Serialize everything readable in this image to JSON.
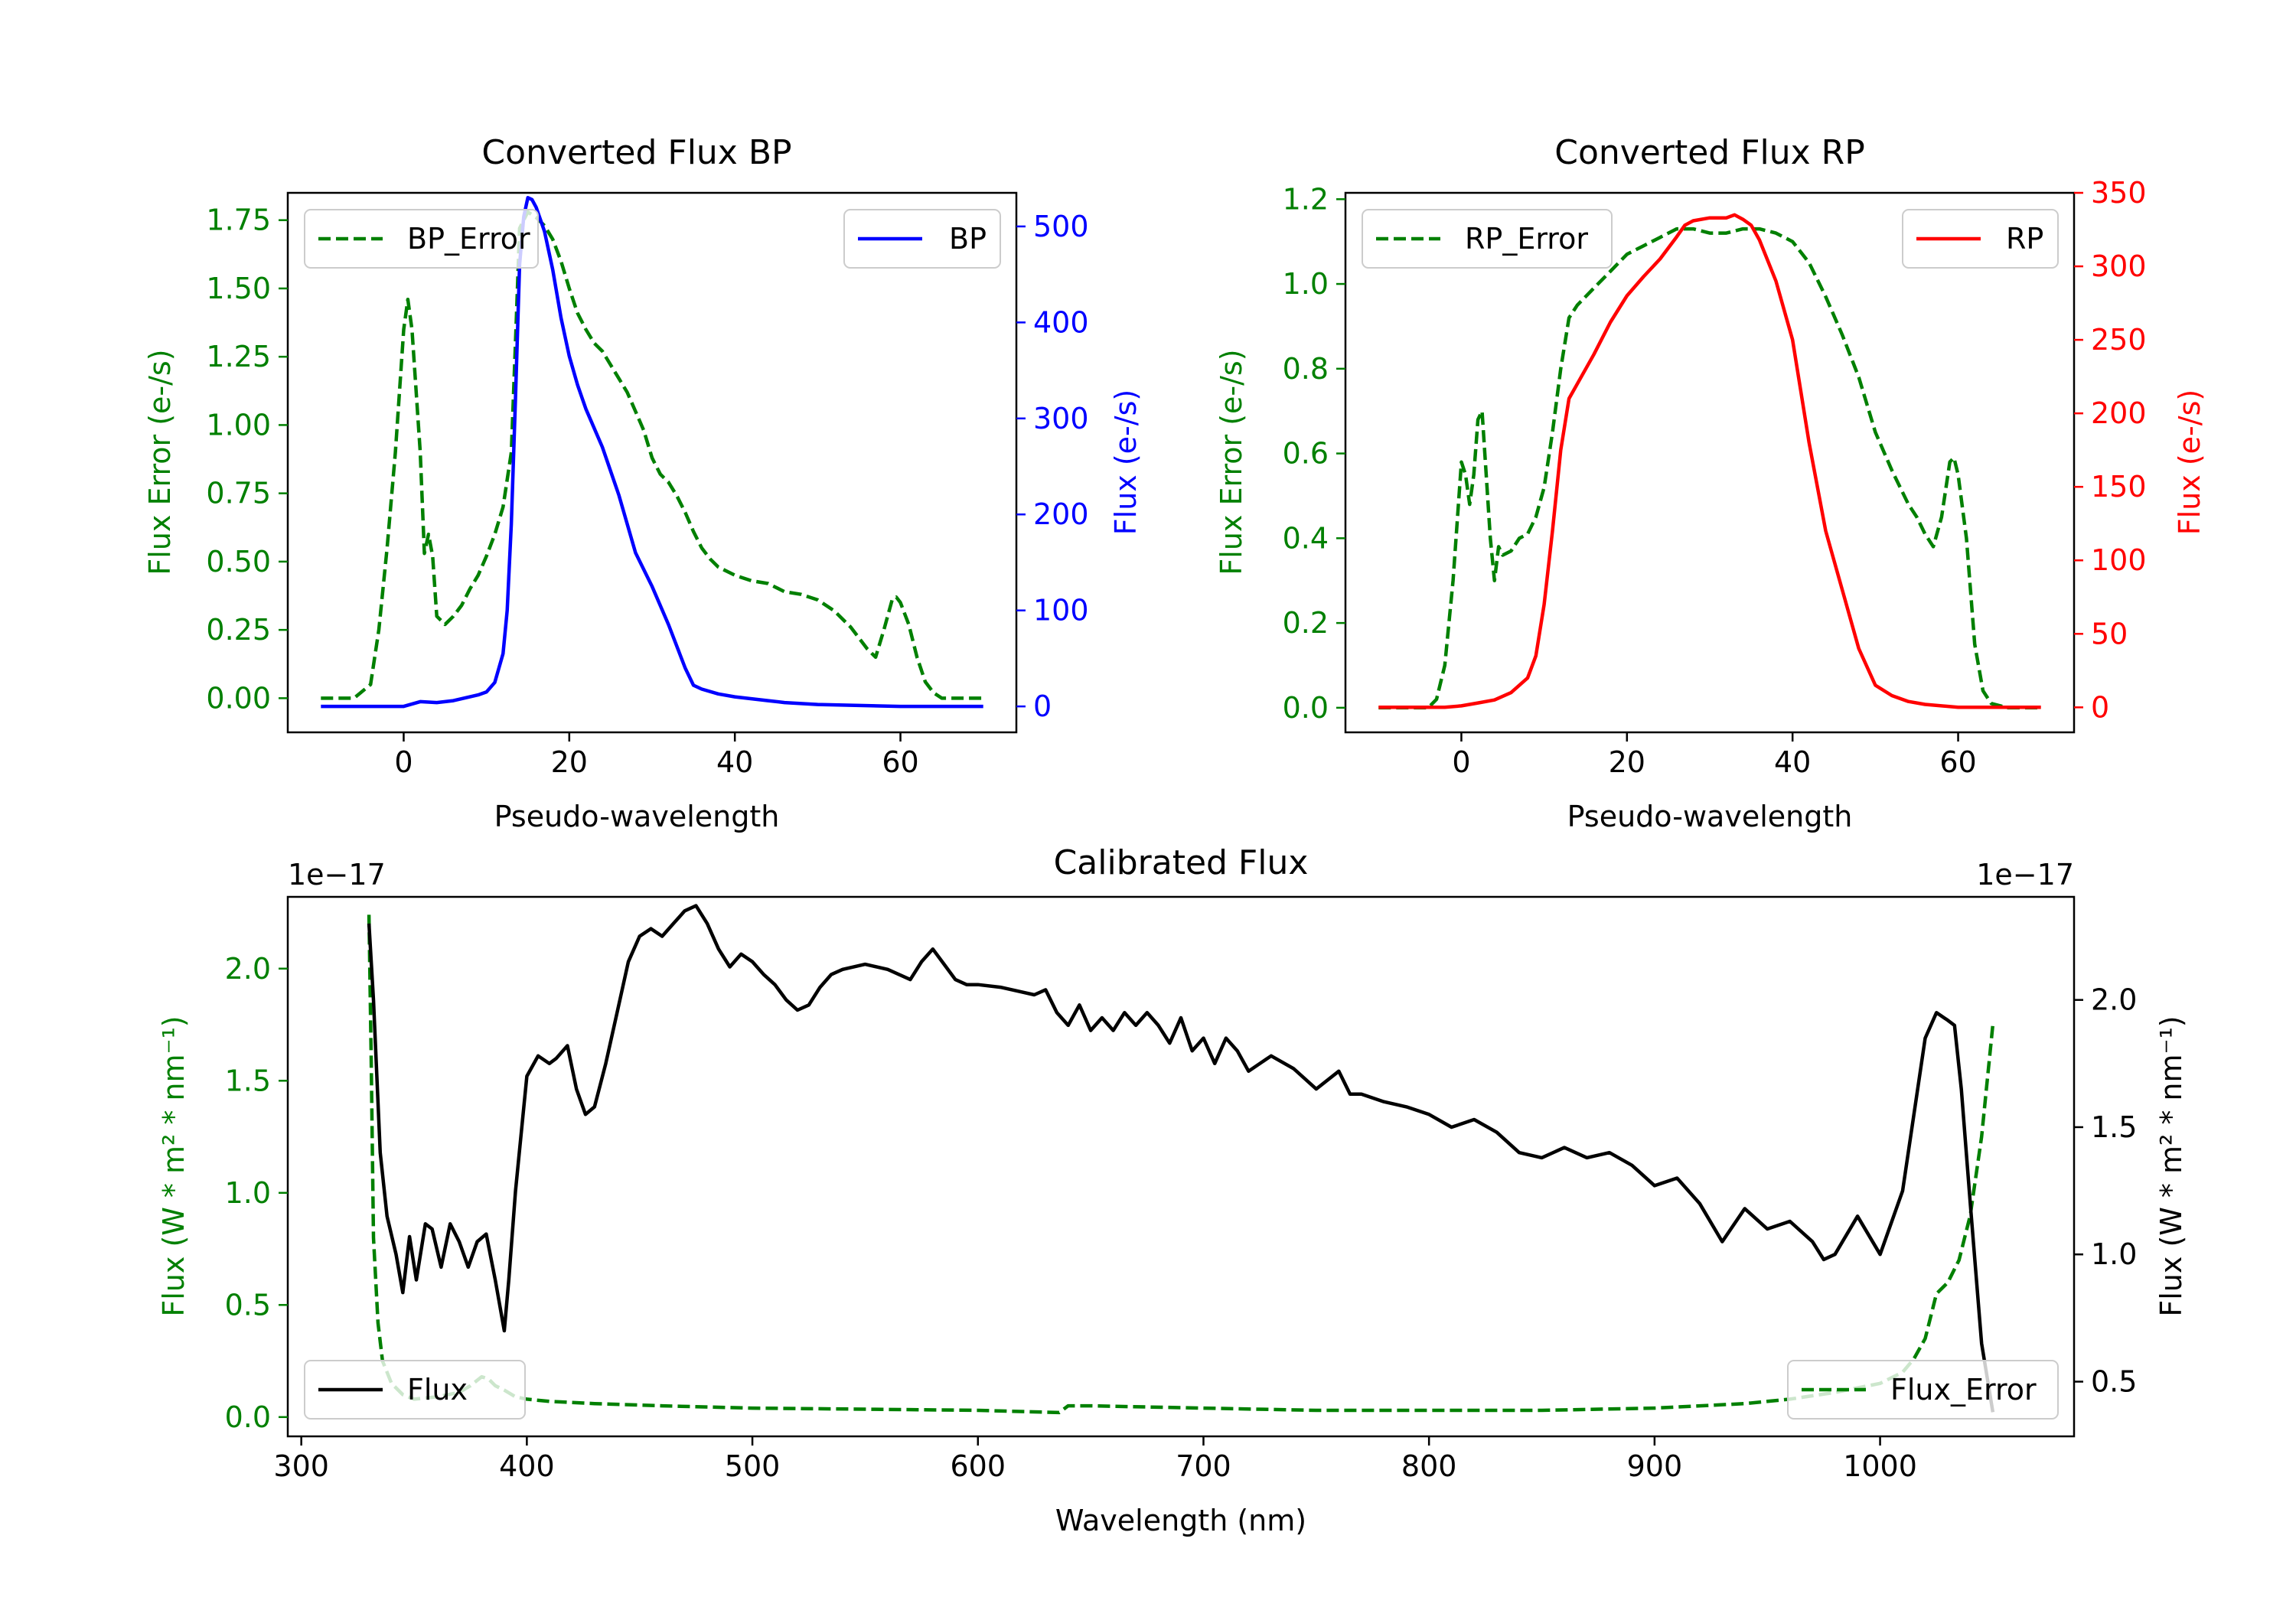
{
  "chart_data": [
    {
      "type": "line",
      "title": "Converted Flux BP",
      "xlabel": "Pseudo-wavelength",
      "ylabel_left": "Flux Error (e-/s)",
      "ylabel_right": "Flux (e-/s)",
      "xlim": [
        -14,
        74
      ],
      "ylim_left": [
        -0.125,
        1.85
      ],
      "ylim_right": [
        -27,
        535
      ],
      "x_ticks": [
        "0",
        "20",
        "40",
        "60"
      ],
      "y_ticks_left": [
        "0.00",
        "0.25",
        "0.50",
        "0.75",
        "1.00",
        "1.25",
        "1.50",
        "1.75"
      ],
      "y_ticks_right": [
        "0",
        "100",
        "200",
        "300",
        "400",
        "500"
      ],
      "colors": {
        "left_axis": "#008000",
        "right_axis": "#0000ff"
      },
      "series": [
        {
          "name": "BP_Error",
          "axis": "left",
          "style": "dashed",
          "color": "#008000",
          "x": [
            -10,
            -6,
            -4,
            -3,
            -2,
            -1,
            0,
            0.5,
            1,
            2,
            2.5,
            3,
            3.5,
            4,
            5,
            6,
            7,
            8,
            9,
            10,
            11,
            12,
            13,
            13.5,
            14,
            15,
            16,
            17,
            18,
            19,
            20,
            21,
            22,
            23,
            24,
            25,
            26,
            27,
            28,
            29,
            30,
            31,
            32,
            33,
            34,
            35,
            36,
            37,
            38,
            40,
            42,
            44,
            46,
            48,
            50,
            52,
            54,
            56,
            57,
            58,
            59,
            59.5,
            60,
            61,
            62,
            63,
            64,
            65,
            66,
            68,
            70
          ],
          "values": [
            0,
            0,
            0.05,
            0.25,
            0.55,
            0.9,
            1.35,
            1.46,
            1.35,
            0.9,
            0.53,
            0.6,
            0.52,
            0.3,
            0.27,
            0.3,
            0.34,
            0.4,
            0.45,
            0.52,
            0.6,
            0.7,
            0.9,
            1.3,
            1.72,
            1.78,
            1.76,
            1.73,
            1.68,
            1.6,
            1.5,
            1.41,
            1.35,
            1.3,
            1.27,
            1.22,
            1.17,
            1.12,
            1.05,
            0.98,
            0.88,
            0.82,
            0.79,
            0.74,
            0.68,
            0.61,
            0.55,
            0.51,
            0.48,
            0.45,
            0.43,
            0.42,
            0.39,
            0.38,
            0.36,
            0.32,
            0.26,
            0.18,
            0.15,
            0.25,
            0.36,
            0.37,
            0.35,
            0.27,
            0.15,
            0.06,
            0.02,
            0,
            0,
            0,
            0
          ]
        },
        {
          "name": "BP",
          "axis": "right",
          "style": "solid",
          "color": "#0000ff",
          "x": [
            -10,
            0,
            2,
            4,
            6,
            8,
            9,
            10,
            11,
            12,
            12.5,
            13,
            13.5,
            14,
            14.5,
            15,
            15.5,
            16,
            17,
            18,
            19,
            20,
            21,
            22,
            24,
            26,
            28,
            30,
            32,
            34,
            35,
            36,
            38,
            40,
            42,
            44,
            46,
            50,
            55,
            60,
            70
          ],
          "values": [
            0,
            0,
            5,
            4,
            6,
            10,
            12,
            15,
            25,
            55,
            100,
            190,
            320,
            460,
            510,
            530,
            528,
            520,
            495,
            455,
            405,
            365,
            335,
            310,
            270,
            220,
            160,
            125,
            85,
            40,
            22,
            18,
            13,
            10,
            8,
            6,
            4,
            2,
            1,
            0,
            0
          ]
        }
      ],
      "legend": [
        {
          "label": "BP_Error",
          "location": "upper-left"
        },
        {
          "label": "BP",
          "location": "upper-right"
        }
      ]
    },
    {
      "type": "line",
      "title": "Converted Flux RP",
      "xlabel": "Pseudo-wavelength",
      "ylabel_left": "Flux Error (e-/s)",
      "ylabel_right": "Flux (e-/s)",
      "xlim": [
        -14,
        74
      ],
      "ylim_left": [
        -0.058,
        1.215
      ],
      "ylim_right": [
        -17,
        350
      ],
      "x_ticks": [
        "0",
        "20",
        "40",
        "60"
      ],
      "y_ticks_left": [
        "0.0",
        "0.2",
        "0.4",
        "0.6",
        "0.8",
        "1.0",
        "1.2"
      ],
      "y_ticks_right": [
        "0",
        "50",
        "100",
        "150",
        "200",
        "250",
        "300",
        "350"
      ],
      "colors": {
        "left_axis": "#008000",
        "right_axis": "#ff0000"
      },
      "series": [
        {
          "name": "RP_Error",
          "axis": "left",
          "style": "dashed",
          "color": "#008000",
          "x": [
            -10,
            -4,
            -3,
            -2,
            -1,
            0,
            0.5,
            1,
            1.5,
            2,
            2.5,
            3,
            3.5,
            4,
            4.5,
            5,
            6,
            7,
            8,
            9,
            10,
            11,
            12,
            13,
            14,
            16,
            18,
            20,
            22,
            24,
            26,
            28,
            30,
            32,
            34,
            36,
            38,
            40,
            42,
            44,
            46,
            48,
            50,
            52,
            54,
            55,
            56,
            57,
            58,
            59,
            59.5,
            60,
            61,
            62,
            63,
            64,
            66,
            70
          ],
          "values": [
            0,
            0,
            0.02,
            0.1,
            0.3,
            0.58,
            0.55,
            0.48,
            0.55,
            0.68,
            0.7,
            0.55,
            0.4,
            0.3,
            0.38,
            0.36,
            0.37,
            0.4,
            0.41,
            0.45,
            0.52,
            0.65,
            0.8,
            0.92,
            0.95,
            0.99,
            1.03,
            1.07,
            1.09,
            1.11,
            1.13,
            1.13,
            1.12,
            1.12,
            1.13,
            1.13,
            1.12,
            1.1,
            1.05,
            0.97,
            0.88,
            0.78,
            0.65,
            0.56,
            0.48,
            0.45,
            0.41,
            0.38,
            0.45,
            0.58,
            0.59,
            0.55,
            0.4,
            0.15,
            0.04,
            0.01,
            0,
            0
          ]
        },
        {
          "name": "RP",
          "axis": "right",
          "style": "solid",
          "color": "#ff0000",
          "x": [
            -10,
            -2,
            0,
            2,
            4,
            6,
            8,
            9,
            10,
            11,
            12,
            13,
            14,
            16,
            18,
            20,
            22,
            24,
            26,
            27,
            28,
            30,
            32,
            33,
            34,
            35,
            36,
            38,
            40,
            42,
            44,
            46,
            48,
            50,
            52,
            54,
            56,
            60,
            65,
            70
          ],
          "values": [
            0,
            0,
            1,
            3,
            5,
            10,
            20,
            35,
            70,
            120,
            175,
            210,
            220,
            240,
            262,
            280,
            293,
            305,
            320,
            328,
            331,
            333,
            333,
            335,
            332,
            328,
            318,
            290,
            250,
            180,
            120,
            80,
            40,
            15,
            8,
            4,
            2,
            0,
            0,
            0
          ]
        }
      ],
      "legend": [
        {
          "label": "RP_Error",
          "location": "upper-left"
        },
        {
          "label": "RP",
          "location": "upper-right"
        }
      ]
    },
    {
      "type": "line",
      "title": "Calibrated Flux",
      "xlabel": "Wavelength (nm)",
      "ylabel_left": "Flux (W * m² * nm⁻¹)",
      "ylabel_right": "Flux (W * m² * nm⁻¹)",
      "offset_left": "1e−17",
      "offset_right": "1e−17",
      "xlim": [
        294,
        1086
      ],
      "ylim_left": [
        -0.086,
        2.32
      ],
      "ylim_right": [
        0.285,
        2.405
      ],
      "x_ticks": [
        "300",
        "400",
        "500",
        "600",
        "700",
        "800",
        "900",
        "1000"
      ],
      "y_ticks_left": [
        "0.0",
        "0.5",
        "1.0",
        "1.5",
        "2.0"
      ],
      "y_ticks_right": [
        "0.5",
        "1.0",
        "1.5",
        "2.0"
      ],
      "colors": {
        "left_axis": "#008000",
        "right_axis": "#000000"
      },
      "series": [
        {
          "name": "Flux_Error",
          "axis": "left",
          "style": "dashed",
          "color": "#008000",
          "x": [
            330,
            331,
            332,
            334,
            336,
            340,
            345,
            350,
            360,
            370,
            375,
            380,
            383,
            386,
            390,
            395,
            400,
            410,
            430,
            460,
            500,
            550,
            600,
            636,
            640,
            650,
            700,
            750,
            800,
            850,
            900,
            940,
            960,
            980,
            1000,
            1010,
            1015,
            1020,
            1025,
            1030,
            1035,
            1040,
            1045,
            1050
          ],
          "values": [
            2.24,
            1.6,
            0.8,
            0.42,
            0.25,
            0.15,
            0.1,
            0.08,
            0.09,
            0.11,
            0.14,
            0.18,
            0.17,
            0.14,
            0.12,
            0.09,
            0.08,
            0.07,
            0.06,
            0.05,
            0.04,
            0.035,
            0.03,
            0.02,
            0.05,
            0.05,
            0.04,
            0.03,
            0.03,
            0.03,
            0.04,
            0.06,
            0.08,
            0.11,
            0.15,
            0.2,
            0.26,
            0.35,
            0.55,
            0.6,
            0.7,
            0.9,
            1.25,
            1.75
          ]
        },
        {
          "name": "Flux",
          "axis": "right",
          "style": "solid",
          "color": "#000000",
          "x": [
            330,
            332,
            335,
            338,
            342,
            345,
            348,
            351,
            355,
            358,
            362,
            366,
            370,
            374,
            378,
            382,
            386,
            390,
            392,
            395,
            400,
            405,
            410,
            413,
            418,
            422,
            426,
            430,
            435,
            440,
            445,
            450,
            455,
            460,
            465,
            470,
            475,
            480,
            485,
            490,
            495,
            500,
            505,
            510,
            515,
            520,
            525,
            530,
            535,
            540,
            550,
            560,
            570,
            575,
            580,
            585,
            590,
            595,
            600,
            610,
            620,
            625,
            630,
            635,
            640,
            645,
            650,
            655,
            660,
            665,
            670,
            675,
            680,
            685,
            690,
            695,
            700,
            705,
            710,
            715,
            720,
            730,
            740,
            750,
            760,
            765,
            770,
            780,
            790,
            800,
            810,
            820,
            830,
            840,
            850,
            860,
            870,
            880,
            890,
            900,
            910,
            920,
            930,
            940,
            950,
            960,
            970,
            975,
            980,
            990,
            1000,
            1010,
            1020,
            1025,
            1030,
            1033,
            1036,
            1040,
            1045,
            1050
          ],
          "values": [
            2.3,
            2.0,
            1.4,
            1.15,
            1.0,
            0.85,
            1.07,
            0.9,
            1.12,
            1.1,
            0.95,
            1.12,
            1.05,
            0.95,
            1.05,
            1.08,
            0.9,
            0.7,
            0.9,
            1.25,
            1.7,
            1.78,
            1.75,
            1.77,
            1.82,
            1.65,
            1.55,
            1.58,
            1.75,
            1.95,
            2.15,
            2.25,
            2.28,
            2.25,
            2.3,
            2.35,
            2.37,
            2.3,
            2.2,
            2.13,
            2.18,
            2.15,
            2.1,
            2.06,
            2.0,
            1.96,
            1.98,
            2.05,
            2.1,
            2.12,
            2.14,
            2.12,
            2.08,
            2.15,
            2.2,
            2.14,
            2.08,
            2.06,
            2.06,
            2.05,
            2.03,
            2.02,
            2.04,
            1.95,
            1.9,
            1.98,
            1.88,
            1.93,
            1.88,
            1.95,
            1.9,
            1.95,
            1.9,
            1.83,
            1.93,
            1.8,
            1.85,
            1.75,
            1.85,
            1.8,
            1.72,
            1.78,
            1.73,
            1.65,
            1.72,
            1.63,
            1.63,
            1.6,
            1.58,
            1.55,
            1.5,
            1.53,
            1.48,
            1.4,
            1.38,
            1.42,
            1.38,
            1.4,
            1.35,
            1.27,
            1.3,
            1.2,
            1.05,
            1.18,
            1.1,
            1.13,
            1.05,
            0.98,
            1.0,
            1.15,
            1.0,
            1.25,
            1.85,
            1.95,
            1.92,
            1.9,
            1.65,
            1.2,
            0.65,
            0.38
          ]
        }
      ],
      "legend": [
        {
          "label": "Flux",
          "location": "lower-left"
        },
        {
          "label": "Flux_Error",
          "location": "lower-right"
        }
      ]
    }
  ]
}
